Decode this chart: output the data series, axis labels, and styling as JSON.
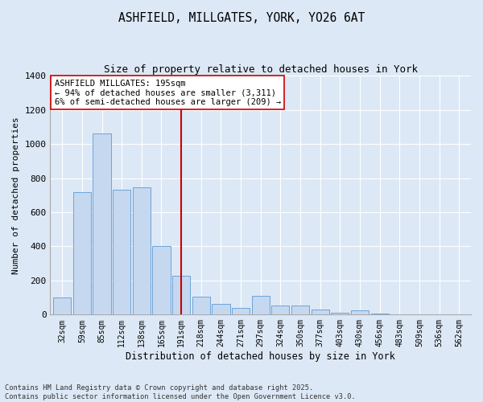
{
  "title_line1": "ASHFIELD, MILLGATES, YORK, YO26 6AT",
  "title_line2": "Size of property relative to detached houses in York",
  "xlabel": "Distribution of detached houses by size in York",
  "ylabel": "Number of detached properties",
  "categories": [
    "32sqm",
    "59sqm",
    "85sqm",
    "112sqm",
    "138sqm",
    "165sqm",
    "191sqm",
    "218sqm",
    "244sqm",
    "271sqm",
    "297sqm",
    "324sqm",
    "350sqm",
    "377sqm",
    "403sqm",
    "430sqm",
    "456sqm",
    "483sqm",
    "509sqm",
    "536sqm",
    "562sqm"
  ],
  "values": [
    100,
    720,
    1060,
    730,
    745,
    400,
    230,
    105,
    65,
    40,
    110,
    55,
    55,
    30,
    10,
    25,
    5,
    0,
    0,
    0,
    0
  ],
  "bar_color": "#c5d8f0",
  "bar_edge_color": "#5b9bd5",
  "vline_x_index": 6,
  "vline_color": "#cc0000",
  "annotation_text": "ASHFIELD MILLGATES: 195sqm\n← 94% of detached houses are smaller (3,311)\n6% of semi-detached houses are larger (209) →",
  "annotation_box_color": "#ffffff",
  "annotation_box_edge": "#cc0000",
  "ylim": [
    0,
    1400
  ],
  "yticks": [
    0,
    200,
    400,
    600,
    800,
    1000,
    1200,
    1400
  ],
  "background_color": "#dce8f5",
  "grid_color": "#ffffff",
  "footnote": "Contains HM Land Registry data © Crown copyright and database right 2025.\nContains public sector information licensed under the Open Government Licence v3.0."
}
